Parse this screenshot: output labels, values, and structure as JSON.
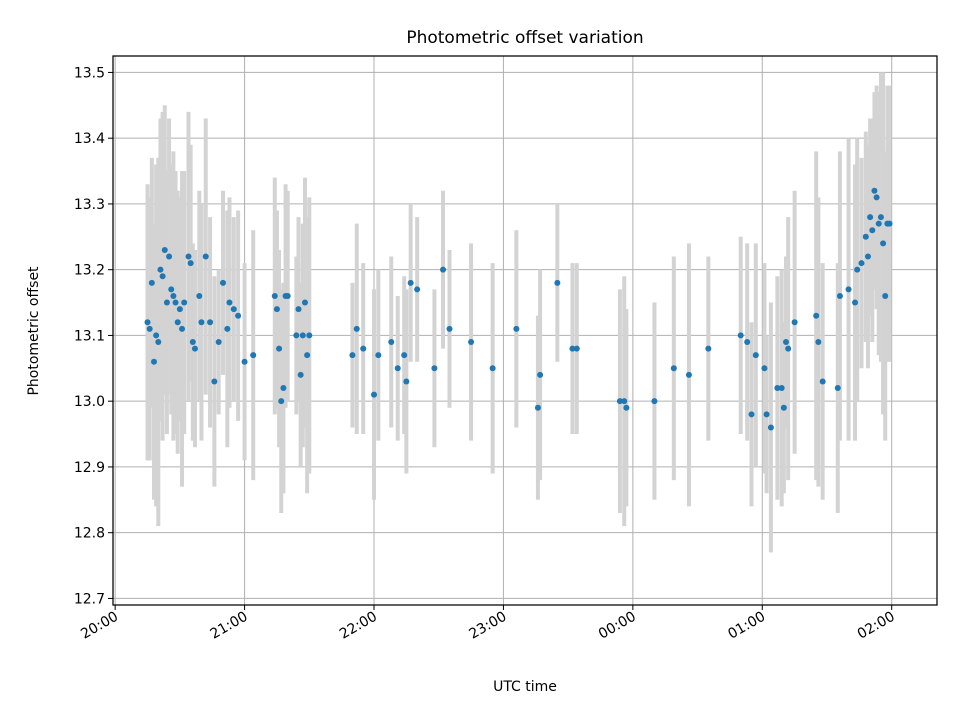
{
  "chart_data": {
    "type": "scatter",
    "title": "Photometric offset variation",
    "xlabel": "UTC time",
    "ylabel": "Photometric offset",
    "x_tick_labels": [
      "20:00",
      "21:00",
      "22:00",
      "23:00",
      "00:00",
      "01:00",
      "02:00"
    ],
    "y_ticks": [
      12.7,
      12.8,
      12.9,
      13.0,
      13.1,
      13.2,
      13.3,
      13.4,
      13.5
    ],
    "y_tick_labels": [
      "12.7",
      "12.8",
      "12.9",
      "13.0",
      "13.1",
      "13.2",
      "13.3",
      "13.4",
      "13.5"
    ],
    "xlim": [
      "19:59",
      "02:21"
    ],
    "ylim": [
      12.69,
      13.525
    ],
    "grid": true,
    "colors": {
      "points": "#1f77b4",
      "errorbars": "#d3d3d3",
      "grid": "#b0b0b0"
    },
    "series": [
      {
        "x": [
          "20:15",
          "20:16",
          "20:17",
          "20:18",
          "20:19",
          "20:20",
          "20:21",
          "20:22",
          "20:23",
          "20:24",
          "20:25",
          "20:26",
          "20:27",
          "20:28",
          "20:29",
          "20:30",
          "20:31",
          "20:32",
          "20:34",
          "20:35",
          "20:36",
          "20:37",
          "20:39",
          "20:40",
          "20:42",
          "20:44",
          "20:46",
          "20:48",
          "20:50",
          "20:52",
          "20:53",
          "20:55",
          "20:57",
          "21:00",
          "21:04",
          "21:14",
          "21:15",
          "21:16",
          "21:17",
          "21:18",
          "21:19",
          "21:20",
          "21:24",
          "21:25",
          "21:26",
          "21:27",
          "21:28",
          "21:29",
          "21:30",
          "21:50",
          "21:52",
          "21:55",
          "22:00",
          "22:02",
          "22:08",
          "22:11",
          "22:14",
          "22:15",
          "22:17",
          "22:20",
          "22:28",
          "22:32",
          "22:35",
          "22:45",
          "22:55",
          "23:06",
          "23:16",
          "23:17",
          "23:25",
          "23:32",
          "23:34",
          "23:54",
          "23:56",
          "23:57",
          "00:10",
          "00:19",
          "00:26",
          "00:35",
          "00:50",
          "00:53",
          "00:55",
          "00:57",
          "01:01",
          "01:02",
          "01:04",
          "01:07",
          "01:09",
          "01:10",
          "01:11",
          "01:12",
          "01:15",
          "01:25",
          "01:26",
          "01:28",
          "01:35",
          "01:36",
          "01:40",
          "01:43",
          "01:44",
          "01:46",
          "01:48",
          "01:49",
          "01:50",
          "01:51",
          "01:52",
          "01:53",
          "01:54",
          "01:55",
          "01:56",
          "01:57",
          "01:58",
          "01:59"
        ],
        "y": [
          13.12,
          13.11,
          13.18,
          13.06,
          13.1,
          13.09,
          13.2,
          13.19,
          13.23,
          13.15,
          13.22,
          13.17,
          13.16,
          13.15,
          13.12,
          13.14,
          13.11,
          13.15,
          13.22,
          13.21,
          13.09,
          13.08,
          13.16,
          13.12,
          13.22,
          13.12,
          13.03,
          13.09,
          13.18,
          13.11,
          13.15,
          13.14,
          13.13,
          13.06,
          13.07,
          13.16,
          13.14,
          13.08,
          13.0,
          13.02,
          13.16,
          13.16,
          13.1,
          13.14,
          13.04,
          13.1,
          13.15,
          13.07,
          13.1,
          13.07,
          13.11,
          13.08,
          13.01,
          13.07,
          13.09,
          13.05,
          13.07,
          13.03,
          13.18,
          13.17,
          13.05,
          13.2,
          13.11,
          13.09,
          13.05,
          13.11,
          12.99,
          13.04,
          13.18,
          13.08,
          13.08,
          13.0,
          13.0,
          12.99,
          13.0,
          13.05,
          13.04,
          13.08,
          13.1,
          13.09,
          12.98,
          13.07,
          13.05,
          12.98,
          12.96,
          13.02,
          13.02,
          12.99,
          13.09,
          13.08,
          13.12,
          13.13,
          13.09,
          13.03,
          13.02,
          13.16,
          13.17,
          13.15,
          13.2,
          13.21,
          13.25,
          13.22,
          13.28,
          13.26,
          13.32,
          13.31,
          13.27,
          13.28,
          13.24,
          13.16,
          13.27,
          13.27
        ],
        "yerr": [
          0.21,
          0.2,
          0.19,
          0.21,
          0.26,
          0.28,
          0.23,
          0.25,
          0.22,
          0.2,
          0.21,
          0.19,
          0.22,
          0.2,
          0.2,
          0.17,
          0.24,
          0.2,
          0.22,
          0.18,
          0.15,
          0.15,
          0.16,
          0.18,
          0.21,
          0.16,
          0.16,
          0.11,
          0.14,
          0.18,
          0.16,
          0.14,
          0.16,
          0.15,
          0.19,
          0.18,
          0.15,
          0.15,
          0.17,
          0.16,
          0.17,
          0.16,
          0.12,
          0.14,
          0.14,
          0.17,
          0.19,
          0.21,
          0.21,
          0.11,
          0.16,
          0.13,
          0.16,
          0.13,
          0.13,
          0.11,
          0.12,
          0.14,
          0.12,
          0.11,
          0.12,
          0.12,
          0.12,
          0.15,
          0.16,
          0.15,
          0.14,
          0.16,
          0.12,
          0.13,
          0.13,
          0.17,
          0.19,
          0.15,
          0.15,
          0.17,
          0.2,
          0.14,
          0.15,
          0.15,
          0.14,
          0.17,
          0.16,
          0.12,
          0.19,
          0.17,
          0.18,
          0.13,
          0.13,
          0.2,
          0.2,
          0.25,
          0.22,
          0.18,
          0.19,
          0.22,
          0.23,
          0.21,
          0.2,
          0.16,
          0.16,
          0.17,
          0.15,
          0.17,
          0.15,
          0.17,
          0.2,
          0.22,
          0.26,
          0.22,
          0.21,
          0.21
        ]
      }
    ]
  }
}
